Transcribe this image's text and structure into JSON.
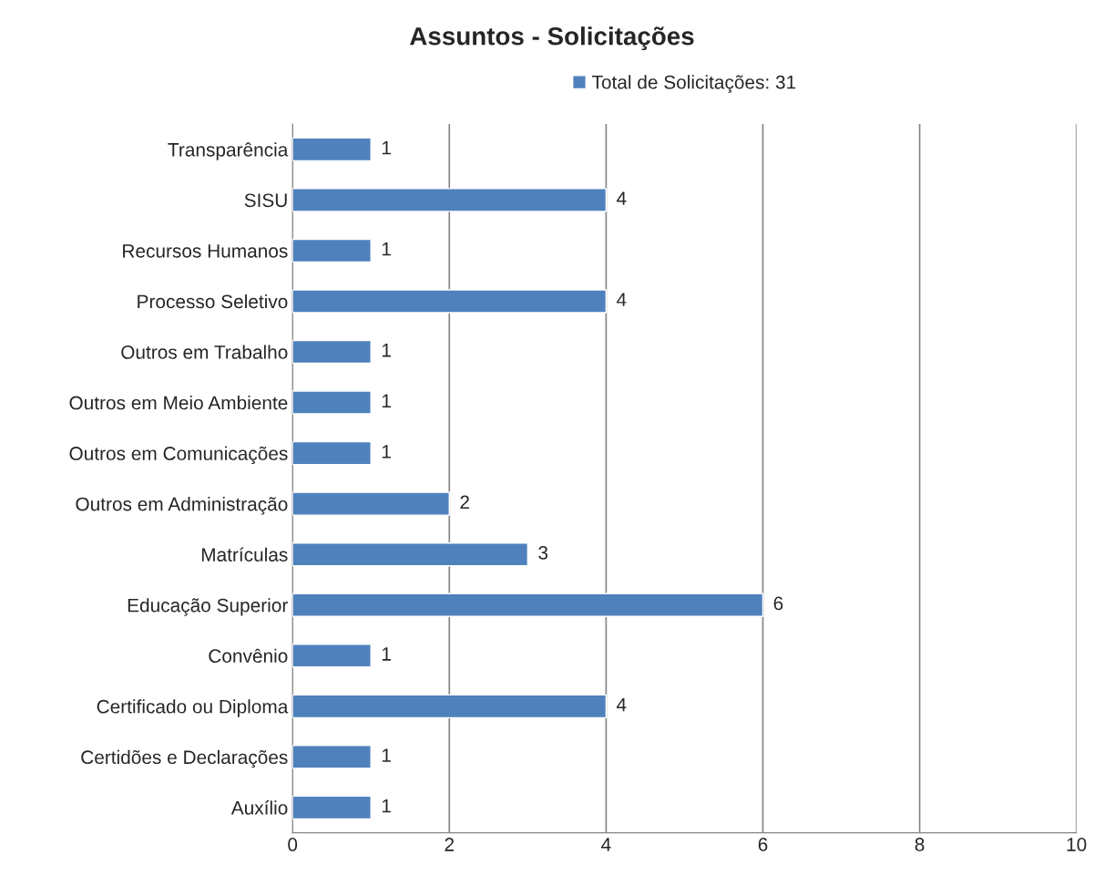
{
  "chart_data": {
    "type": "bar",
    "orientation": "horizontal",
    "title": "Assuntos - Solicitações",
    "categories": [
      "Transparência",
      "SISU",
      "Recursos Humanos",
      "Processo Seletivo",
      "Outros em Trabalho",
      "Outros em Meio Ambiente",
      "Outros em Comunicações",
      "Outros em Administração",
      "Matrículas",
      "Educação Superior",
      "Convênio",
      "Certificado ou Diploma",
      "Certidões e Declarações",
      "Auxílio"
    ],
    "series": [
      {
        "name": "Total de Solicitações: 31",
        "color": "#4f81bd",
        "values": [
          1,
          4,
          1,
          4,
          1,
          1,
          1,
          2,
          3,
          6,
          1,
          4,
          1,
          1
        ]
      }
    ],
    "xlim": [
      0,
      10
    ],
    "xticks": [
      0,
      2,
      4,
      6,
      8,
      10
    ],
    "grid": "x",
    "legend": "top",
    "data_labels": true
  }
}
